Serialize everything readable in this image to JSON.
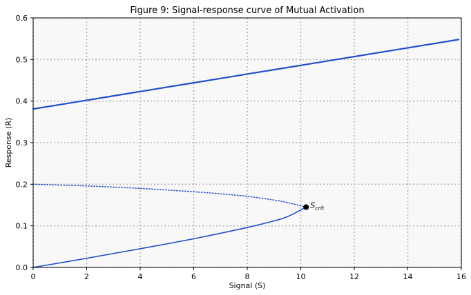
{
  "chart_data": {
    "type": "line",
    "title": "Figure 9: Signal-response curve of Mutual Activation",
    "xlabel": "Signal (S)",
    "ylabel": "Response (R)",
    "xlim": [
      0,
      16
    ],
    "ylim": [
      0,
      0.6
    ],
    "xticks": [
      "0",
      "2",
      "4",
      "6",
      "8",
      "10",
      "12",
      "14",
      "16"
    ],
    "yticks": [
      "0.0",
      "0.1",
      "0.2",
      "0.3",
      "0.4",
      "0.5",
      "0.6"
    ],
    "grid": true,
    "series": [
      {
        "style": "solid",
        "color": "#1f4fcc",
        "x": [
          0,
          2,
          4,
          6,
          8,
          10,
          12,
          14,
          15.9
        ],
        "y": [
          0.381,
          0.402,
          0.423,
          0.444,
          0.465,
          0.486,
          0.507,
          0.528,
          0.548
        ]
      },
      {
        "style": "dotted",
        "color": "#1f4fcc",
        "x": [
          0,
          2,
          4,
          6,
          7,
          8,
          9,
          9.5,
          10.2
        ],
        "y": [
          0.2,
          0.196,
          0.19,
          0.182,
          0.177,
          0.171,
          0.162,
          0.156,
          0.145
        ]
      },
      {
        "style": "solid",
        "color": "#1f4fcc",
        "x": [
          0,
          2,
          4,
          6,
          8,
          9,
          9.5,
          10.2
        ],
        "y": [
          0.0,
          0.022,
          0.045,
          0.069,
          0.096,
          0.112,
          0.122,
          0.145
        ]
      }
    ],
    "annotations": [
      {
        "text": "S",
        "subscript": "crit",
        "x": 10.2,
        "y": 0.145
      }
    ]
  },
  "colors": {
    "plot_background": "#f8f8f8",
    "grid": "#b5b5b5",
    "marker": "#000000"
  }
}
